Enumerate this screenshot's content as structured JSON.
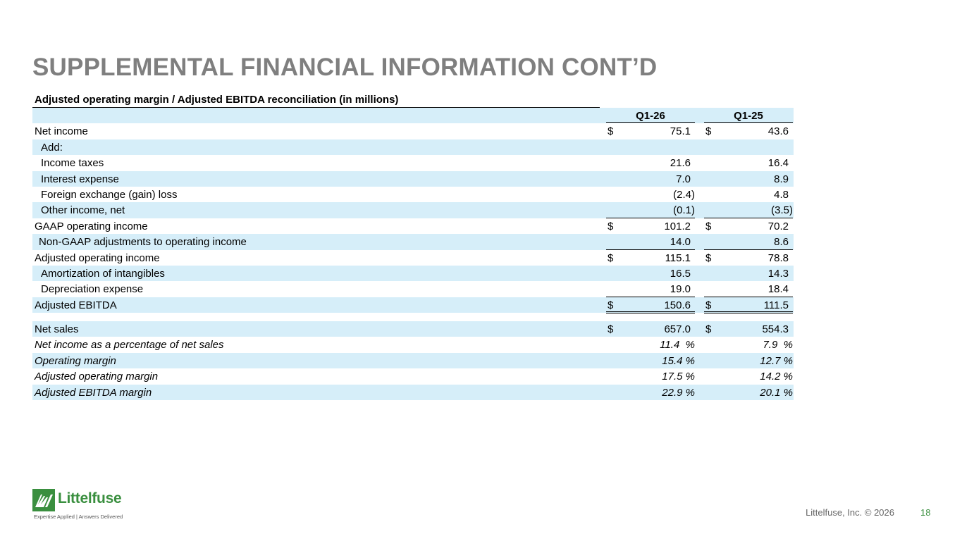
{
  "title": "SUPPLEMENTAL FINANCIAL INFORMATION CONT’D",
  "table": {
    "caption": "Adjusted operating margin / Adjusted EBITDA reconciliation (in millions)",
    "columns": [
      "Q1-26",
      "Q1-25"
    ],
    "rows": [
      {
        "label": "Net income",
        "c1_sign": "$",
        "c1": "75.1",
        "c2_sign": "$",
        "c2": "43.6"
      },
      {
        "label": "Add:",
        "c1_sign": "",
        "c1": "",
        "c2_sign": "",
        "c2": ""
      },
      {
        "label": "Income taxes",
        "c1_sign": "",
        "c1": "21.6",
        "c2_sign": "",
        "c2": "16.4"
      },
      {
        "label": "Interest expense",
        "c1_sign": "",
        "c1": "7.0",
        "c2_sign": "",
        "c2": "8.9"
      },
      {
        "label": "Foreign exchange (gain) loss",
        "c1_sign": "",
        "c1": "(2.4)",
        "c2_sign": "",
        "c2": "4.8"
      },
      {
        "label": "Other income, net",
        "c1_sign": "",
        "c1": "(0.1)",
        "c2_sign": "",
        "c2": "(3.5)"
      },
      {
        "label": "GAAP operating income",
        "c1_sign": "$",
        "c1": "101.2",
        "c2_sign": "$",
        "c2": "70.2"
      },
      {
        "label": "Non-GAAP adjustments to operating income",
        "c1_sign": "",
        "c1": "14.0",
        "c2_sign": "",
        "c2": "8.6"
      },
      {
        "label": "Adjusted operating income",
        "c1_sign": "$",
        "c1": "115.1",
        "c2_sign": "$",
        "c2": "78.8"
      },
      {
        "label": "Amortization of intangibles",
        "c1_sign": "",
        "c1": "16.5",
        "c2_sign": "",
        "c2": "14.3"
      },
      {
        "label": "Depreciation expense",
        "c1_sign": "",
        "c1": "19.0",
        "c2_sign": "",
        "c2": "18.4"
      },
      {
        "label": "Adjusted EBITDA",
        "c1_sign": "$",
        "c1": "150.6",
        "c2_sign": "$",
        "c2": "111.5"
      }
    ],
    "rows2": [
      {
        "label": "Net sales",
        "c1_sign": "$",
        "c1": "657.0",
        "c2_sign": "$",
        "c2": "554.3"
      },
      {
        "label": "Net income as a percentage of net sales",
        "c1": "11.4  %",
        "c2": "7.9  %"
      },
      {
        "label": "Operating margin",
        "c1": "15.4 %",
        "c2": "12.7 %"
      },
      {
        "label": "Adjusted operating margin",
        "c1": "17.5 %",
        "c2": "14.2 %"
      },
      {
        "label": "Adjusted EBITDA margin",
        "c1": "22.9 %",
        "c2": "20.1 %"
      }
    ]
  },
  "footer": {
    "logo_name": "Littelfuse",
    "logo_tagline": "Expertise Applied | Answers Delivered",
    "copyright": "Littelfuse, Inc. © 2026",
    "page_number": "18"
  },
  "colors": {
    "band": "#d6eef9",
    "title": "#7f7f7f",
    "brand_green": "#3a8f3f"
  },
  "icons": [
    "littelfuse-logo-icon"
  ]
}
